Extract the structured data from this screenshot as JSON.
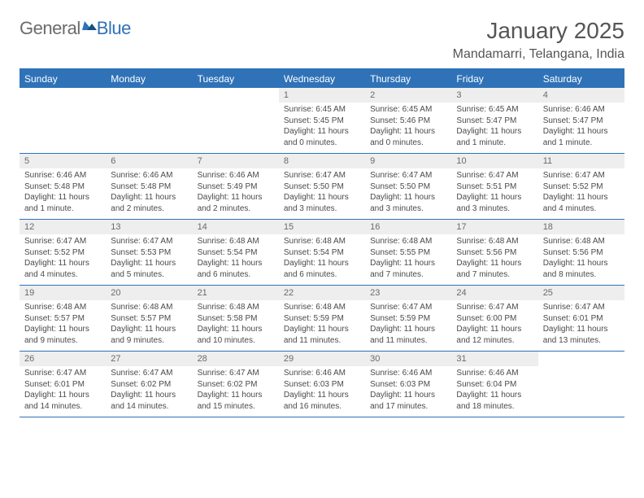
{
  "logo": {
    "general": "General",
    "blue": "Blue"
  },
  "title": "January 2025",
  "location": "Mandamarri, Telangana, India",
  "colors": {
    "brand": "#2f72b8",
    "header_text": "#ffffff",
    "daynum_bg": "#eeeeee",
    "text": "#4a4a4a",
    "background": "#ffffff"
  },
  "days_of_week": [
    "Sunday",
    "Monday",
    "Tuesday",
    "Wednesday",
    "Thursday",
    "Friday",
    "Saturday"
  ],
  "weeks": [
    [
      {
        "n": "",
        "sunrise": "",
        "sunset": "",
        "daylight": ""
      },
      {
        "n": "",
        "sunrise": "",
        "sunset": "",
        "daylight": ""
      },
      {
        "n": "",
        "sunrise": "",
        "sunset": "",
        "daylight": ""
      },
      {
        "n": "1",
        "sunrise": "Sunrise: 6:45 AM",
        "sunset": "Sunset: 5:45 PM",
        "daylight": "Daylight: 11 hours and 0 minutes."
      },
      {
        "n": "2",
        "sunrise": "Sunrise: 6:45 AM",
        "sunset": "Sunset: 5:46 PM",
        "daylight": "Daylight: 11 hours and 0 minutes."
      },
      {
        "n": "3",
        "sunrise": "Sunrise: 6:45 AM",
        "sunset": "Sunset: 5:47 PM",
        "daylight": "Daylight: 11 hours and 1 minute."
      },
      {
        "n": "4",
        "sunrise": "Sunrise: 6:46 AM",
        "sunset": "Sunset: 5:47 PM",
        "daylight": "Daylight: 11 hours and 1 minute."
      }
    ],
    [
      {
        "n": "5",
        "sunrise": "Sunrise: 6:46 AM",
        "sunset": "Sunset: 5:48 PM",
        "daylight": "Daylight: 11 hours and 1 minute."
      },
      {
        "n": "6",
        "sunrise": "Sunrise: 6:46 AM",
        "sunset": "Sunset: 5:48 PM",
        "daylight": "Daylight: 11 hours and 2 minutes."
      },
      {
        "n": "7",
        "sunrise": "Sunrise: 6:46 AM",
        "sunset": "Sunset: 5:49 PM",
        "daylight": "Daylight: 11 hours and 2 minutes."
      },
      {
        "n": "8",
        "sunrise": "Sunrise: 6:47 AM",
        "sunset": "Sunset: 5:50 PM",
        "daylight": "Daylight: 11 hours and 3 minutes."
      },
      {
        "n": "9",
        "sunrise": "Sunrise: 6:47 AM",
        "sunset": "Sunset: 5:50 PM",
        "daylight": "Daylight: 11 hours and 3 minutes."
      },
      {
        "n": "10",
        "sunrise": "Sunrise: 6:47 AM",
        "sunset": "Sunset: 5:51 PM",
        "daylight": "Daylight: 11 hours and 3 minutes."
      },
      {
        "n": "11",
        "sunrise": "Sunrise: 6:47 AM",
        "sunset": "Sunset: 5:52 PM",
        "daylight": "Daylight: 11 hours and 4 minutes."
      }
    ],
    [
      {
        "n": "12",
        "sunrise": "Sunrise: 6:47 AM",
        "sunset": "Sunset: 5:52 PM",
        "daylight": "Daylight: 11 hours and 4 minutes."
      },
      {
        "n": "13",
        "sunrise": "Sunrise: 6:47 AM",
        "sunset": "Sunset: 5:53 PM",
        "daylight": "Daylight: 11 hours and 5 minutes."
      },
      {
        "n": "14",
        "sunrise": "Sunrise: 6:48 AM",
        "sunset": "Sunset: 5:54 PM",
        "daylight": "Daylight: 11 hours and 6 minutes."
      },
      {
        "n": "15",
        "sunrise": "Sunrise: 6:48 AM",
        "sunset": "Sunset: 5:54 PM",
        "daylight": "Daylight: 11 hours and 6 minutes."
      },
      {
        "n": "16",
        "sunrise": "Sunrise: 6:48 AM",
        "sunset": "Sunset: 5:55 PM",
        "daylight": "Daylight: 11 hours and 7 minutes."
      },
      {
        "n": "17",
        "sunrise": "Sunrise: 6:48 AM",
        "sunset": "Sunset: 5:56 PM",
        "daylight": "Daylight: 11 hours and 7 minutes."
      },
      {
        "n": "18",
        "sunrise": "Sunrise: 6:48 AM",
        "sunset": "Sunset: 5:56 PM",
        "daylight": "Daylight: 11 hours and 8 minutes."
      }
    ],
    [
      {
        "n": "19",
        "sunrise": "Sunrise: 6:48 AM",
        "sunset": "Sunset: 5:57 PM",
        "daylight": "Daylight: 11 hours and 9 minutes."
      },
      {
        "n": "20",
        "sunrise": "Sunrise: 6:48 AM",
        "sunset": "Sunset: 5:57 PM",
        "daylight": "Daylight: 11 hours and 9 minutes."
      },
      {
        "n": "21",
        "sunrise": "Sunrise: 6:48 AM",
        "sunset": "Sunset: 5:58 PM",
        "daylight": "Daylight: 11 hours and 10 minutes."
      },
      {
        "n": "22",
        "sunrise": "Sunrise: 6:48 AM",
        "sunset": "Sunset: 5:59 PM",
        "daylight": "Daylight: 11 hours and 11 minutes."
      },
      {
        "n": "23",
        "sunrise": "Sunrise: 6:47 AM",
        "sunset": "Sunset: 5:59 PM",
        "daylight": "Daylight: 11 hours and 11 minutes."
      },
      {
        "n": "24",
        "sunrise": "Sunrise: 6:47 AM",
        "sunset": "Sunset: 6:00 PM",
        "daylight": "Daylight: 11 hours and 12 minutes."
      },
      {
        "n": "25",
        "sunrise": "Sunrise: 6:47 AM",
        "sunset": "Sunset: 6:01 PM",
        "daylight": "Daylight: 11 hours and 13 minutes."
      }
    ],
    [
      {
        "n": "26",
        "sunrise": "Sunrise: 6:47 AM",
        "sunset": "Sunset: 6:01 PM",
        "daylight": "Daylight: 11 hours and 14 minutes."
      },
      {
        "n": "27",
        "sunrise": "Sunrise: 6:47 AM",
        "sunset": "Sunset: 6:02 PM",
        "daylight": "Daylight: 11 hours and 14 minutes."
      },
      {
        "n": "28",
        "sunrise": "Sunrise: 6:47 AM",
        "sunset": "Sunset: 6:02 PM",
        "daylight": "Daylight: 11 hours and 15 minutes."
      },
      {
        "n": "29",
        "sunrise": "Sunrise: 6:46 AM",
        "sunset": "Sunset: 6:03 PM",
        "daylight": "Daylight: 11 hours and 16 minutes."
      },
      {
        "n": "30",
        "sunrise": "Sunrise: 6:46 AM",
        "sunset": "Sunset: 6:03 PM",
        "daylight": "Daylight: 11 hours and 17 minutes."
      },
      {
        "n": "31",
        "sunrise": "Sunrise: 6:46 AM",
        "sunset": "Sunset: 6:04 PM",
        "daylight": "Daylight: 11 hours and 18 minutes."
      },
      {
        "n": "",
        "sunrise": "",
        "sunset": "",
        "daylight": ""
      }
    ]
  ]
}
